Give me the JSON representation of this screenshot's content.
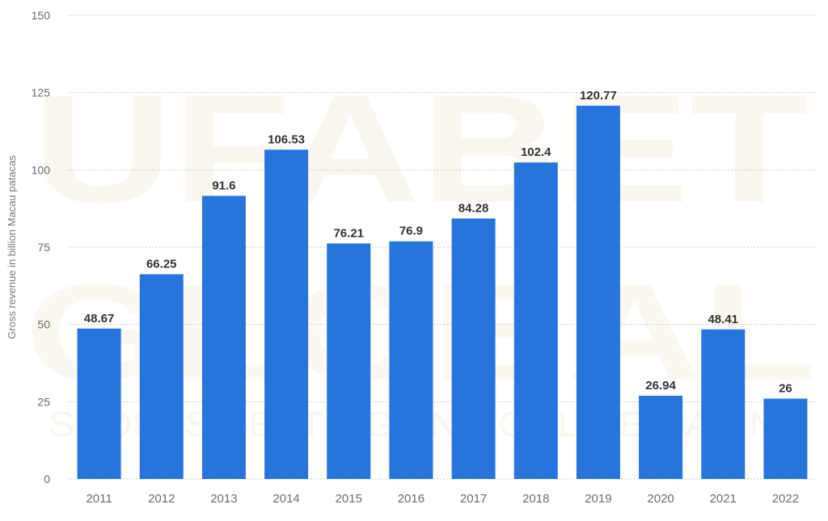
{
  "chart_data": {
    "type": "bar",
    "ylabel": "Gross revenue in billion Macau patacas",
    "xlabel": "",
    "title": "",
    "categories": [
      "2011",
      "2012",
      "2013",
      "2014",
      "2015",
      "2016",
      "2017",
      "2018",
      "2019",
      "2020",
      "2021",
      "2022"
    ],
    "values": [
      48.67,
      66.25,
      91.6,
      106.53,
      76.21,
      76.9,
      84.28,
      102.4,
      120.77,
      26.94,
      48.41,
      26
    ],
    "data_labels": [
      "48.67",
      "66.25",
      "91.6",
      "106.53",
      "76.21",
      "76.9",
      "84.28",
      "102.4",
      "120.77",
      "26.94",
      "48.41",
      "26"
    ],
    "ylim": [
      0,
      150
    ],
    "yticks": [
      0,
      25,
      50,
      75,
      100,
      125,
      150
    ],
    "grid": "horizontal dotted",
    "legend": "none",
    "colors": {
      "bar": "#2874dd",
      "grid": "#cfcfcf",
      "tick_text": "#6b6b6b",
      "data_label": "#333333",
      "axis_title": "#7a7a7a"
    }
  },
  "watermark": {
    "line1": "UFABET",
    "line2": "GLOBAL",
    "line3": "SPORTS BETTING AND ONLINE CASINO",
    "color": "#c9a85c"
  }
}
